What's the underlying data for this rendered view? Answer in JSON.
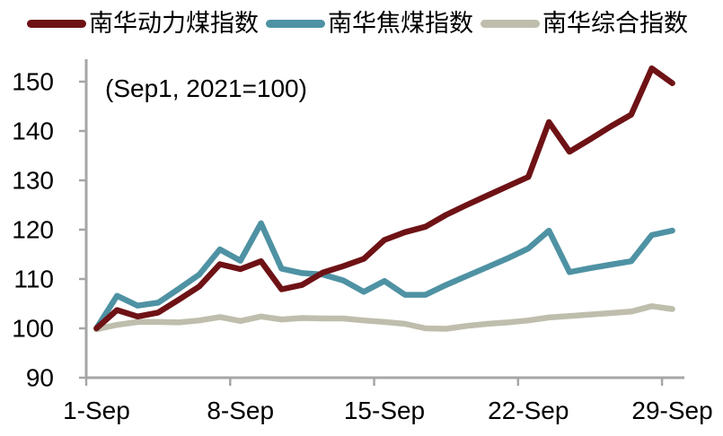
{
  "legend": [
    {
      "label": "南华动力煤指数",
      "color": "#6e1215"
    },
    {
      "label": "南华焦煤指数",
      "color": "#4e92a3"
    },
    {
      "label": "南华综合指数",
      "color": "#bfbead"
    }
  ],
  "annotation": "(Sep1, 2021=100)",
  "chart_data": {
    "type": "line",
    "title": "",
    "xlabel": "",
    "ylabel": "",
    "ylim": [
      90,
      150
    ],
    "y_ticks": [
      90,
      100,
      110,
      120,
      130,
      140,
      150
    ],
    "x_tick_labels": [
      "1-Sep",
      "8-Sep",
      "15-Sep",
      "22-Sep",
      "29-Sep"
    ],
    "x_tick_days": [
      1,
      8,
      15,
      22,
      29
    ],
    "days": [
      1,
      2,
      3,
      4,
      5,
      6,
      7,
      8,
      9,
      10,
      11,
      12,
      13,
      14,
      15,
      16,
      17,
      18,
      19,
      20,
      21,
      22,
      23,
      24,
      25,
      26,
      27,
      28,
      29
    ],
    "grid": "off",
    "legend_position": "top",
    "axis_color": "#a6a6a6",
    "label_color": "#000000",
    "series": [
      {
        "name": "南华动力煤指数",
        "color": "#6e1215",
        "values": [
          100,
          103.7,
          102.4,
          103.2,
          105.8,
          108.5,
          113.0,
          112.0,
          113.6,
          107.9,
          108.8,
          111.3,
          112.6,
          114.1,
          117.9,
          119.5,
          120.6,
          123.0,
          125.0,
          126.9,
          128.8,
          130.7,
          141.8,
          135.8,
          138.3,
          140.9,
          143.3,
          152.7,
          149.7
        ]
      },
      {
        "name": "南华焦煤指数",
        "color": "#4e92a3",
        "values": [
          100,
          106.6,
          104.6,
          105.2,
          108.0,
          110.9,
          116.0,
          113.7,
          121.3,
          112.1,
          111.2,
          110.9,
          109.7,
          107.4,
          109.6,
          106.8,
          106.8,
          108.8,
          110.6,
          112.4,
          114.2,
          116.2,
          119.8,
          111.4,
          112.2,
          112.9,
          113.6,
          118.9,
          119.8
        ]
      },
      {
        "name": "南华综合指数",
        "color": "#bfbead",
        "values": [
          99.8,
          100.7,
          101.3,
          101.3,
          101.2,
          101.6,
          102.3,
          101.5,
          102.4,
          101.8,
          102.1,
          102.0,
          102.0,
          101.6,
          101.3,
          100.9,
          100.0,
          99.9,
          100.5,
          100.9,
          101.2,
          101.6,
          102.2,
          102.5,
          102.8,
          103.1,
          103.4,
          104.5,
          103.9
        ]
      }
    ]
  }
}
